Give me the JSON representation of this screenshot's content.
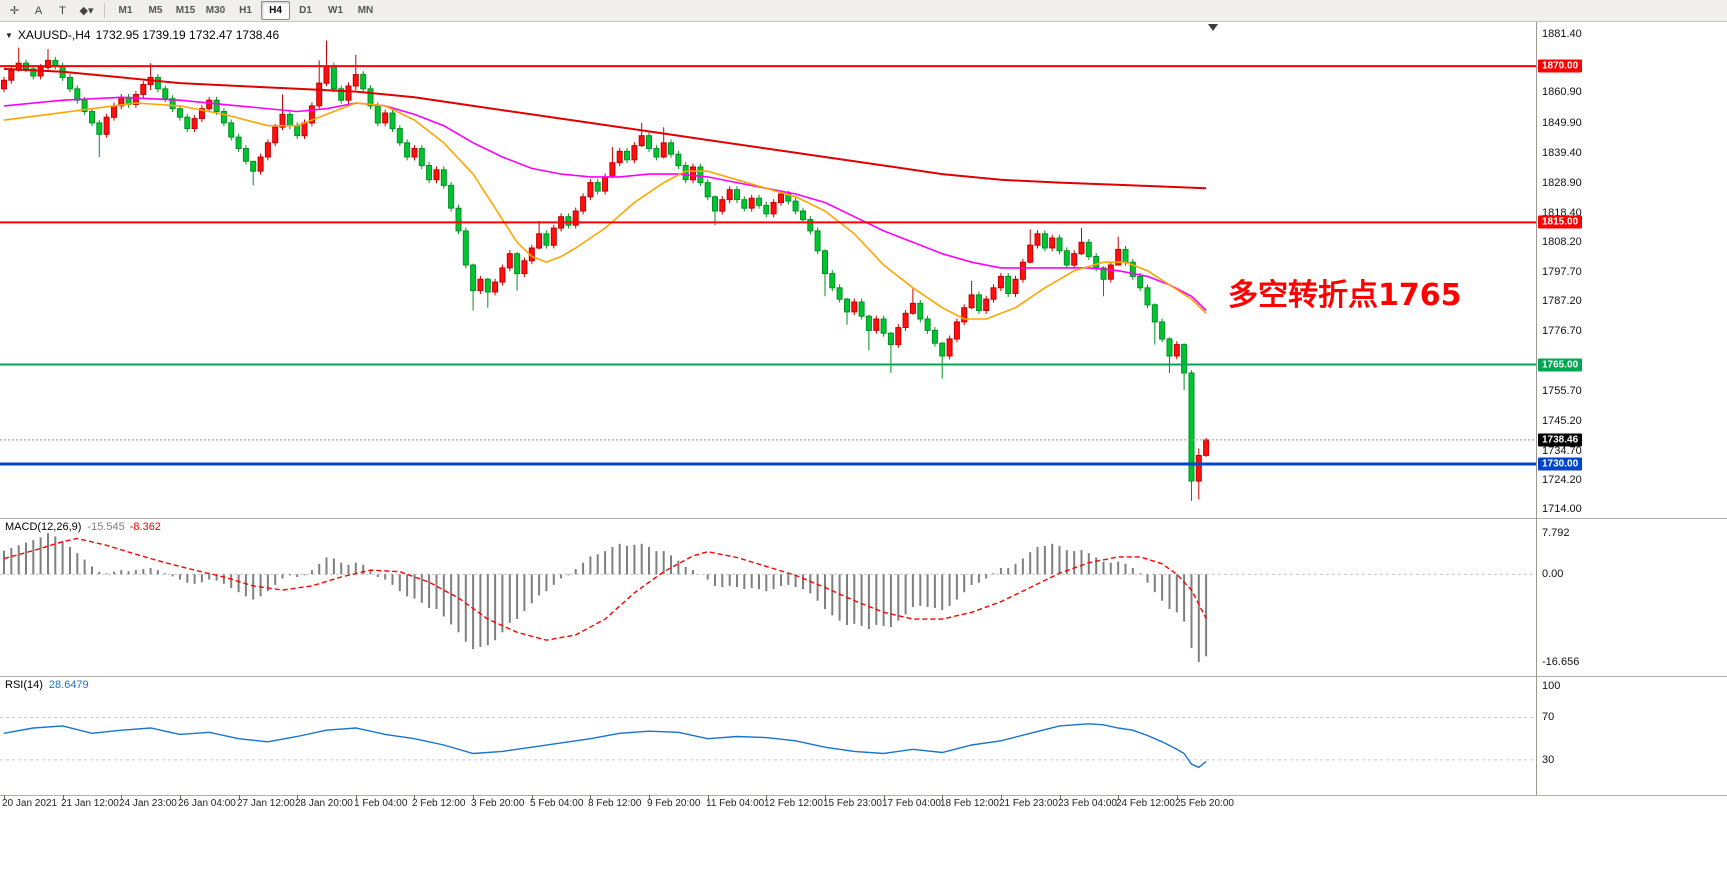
{
  "toolbar": {
    "tool_buttons": [
      {
        "name": "crosshair",
        "glyph": "✛"
      },
      {
        "name": "text-label",
        "glyph": "A"
      },
      {
        "name": "text-tool",
        "glyph": "T"
      },
      {
        "name": "shapes-dropdown",
        "glyph": "◆▾"
      }
    ],
    "timeframes": [
      "M1",
      "M5",
      "M15",
      "M30",
      "H1",
      "H4",
      "D1",
      "W1",
      "MN"
    ],
    "active_timeframe": "H4"
  },
  "chart": {
    "collapse_icon": "▼",
    "symbol_title": "XAUUSD-,H4",
    "ohlc_text": "1732.95 1739.19 1732.47 1738.46",
    "annotation": "多空转折点1765",
    "annotation_color": "#ff0000",
    "price_range": {
      "max": 1885.5,
      "min": 1711.0
    },
    "y_axis_labels": [
      "1881.40",
      "1860.90",
      "1849.90",
      "1839.40",
      "1828.90",
      "1818.40",
      "1808.20",
      "1797.70",
      "1787.20",
      "1776.70",
      "1755.70",
      "1745.20",
      "1734.70",
      "1724.20",
      "1714.00"
    ],
    "hlines": [
      {
        "price": 1870.0,
        "label": "1870.00",
        "color": "#ff0000",
        "width": 2
      },
      {
        "price": 1815.0,
        "label": "1815.00",
        "color": "#ff0000",
        "width": 2
      },
      {
        "price": 1765.0,
        "label": "1765.00",
        "color": "#00a651",
        "width": 2
      },
      {
        "price": 1730.0,
        "label": "1730.00",
        "color": "#0044cc",
        "width": 3
      }
    ],
    "bid": {
      "price": 1738.46,
      "label": "1738.46",
      "badge_color": "#000000"
    }
  },
  "chart_data": {
    "type": "candlestick",
    "symbol": "XAUUSD-",
    "timeframe": "H4",
    "last_candle_ohlc": {
      "open": 1732.95,
      "high": 1739.19,
      "low": 1732.47,
      "close": 1738.46
    },
    "colors": {
      "bull": "#ff0f0f",
      "bull_stroke": "#c40000",
      "bear": "#00c431",
      "bear_stroke": "#009223",
      "ma_fast": "#ffa500",
      "ma_mid": "#ff00ff",
      "ma_slow": "#e00000",
      "macd_hist": "#7f7f7f",
      "macd_signal": "#ff0000",
      "rsi": "#1874cd"
    },
    "first_open": 1862.0,
    "closes": [
      1865.0,
      1868.5,
      1871.0,
      1869.0,
      1866.5,
      1869.5,
      1872.0,
      1870.0,
      1866.0,
      1862.0,
      1858.0,
      1854.0,
      1850.0,
      1846.0,
      1852.0,
      1856.0,
      1859.0,
      1856.5,
      1860.0,
      1863.5,
      1866.0,
      1862.0,
      1858.5,
      1855.0,
      1852.0,
      1848.0,
      1851.5,
      1855.0,
      1858.0,
      1854.0,
      1850.0,
      1845.0,
      1841.0,
      1836.5,
      1833.0,
      1838.0,
      1843.0,
      1848.5,
      1853.0,
      1849.0,
      1845.5,
      1850.0,
      1856.0,
      1864.0,
      1870.0,
      1862.0,
      1858.0,
      1863.0,
      1867.0,
      1862.0,
      1856.0,
      1850.0,
      1853.5,
      1848.0,
      1843.0,
      1838.0,
      1841.0,
      1835.0,
      1830.0,
      1833.5,
      1828.0,
      1820.0,
      1812.0,
      1800.0,
      1791.0,
      1795.0,
      1790.5,
      1794.0,
      1799.0,
      1804.0,
      1797.0,
      1801.5,
      1806.0,
      1811.0,
      1807.0,
      1813.0,
      1817.0,
      1814.0,
      1819.0,
      1824.0,
      1829.0,
      1826.0,
      1831.0,
      1836.0,
      1840.0,
      1837.0,
      1842.0,
      1845.5,
      1841.0,
      1838.0,
      1843.0,
      1839.0,
      1835.0,
      1830.0,
      1834.5,
      1829.0,
      1824.0,
      1819.0,
      1823.0,
      1826.5,
      1823.0,
      1820.0,
      1823.5,
      1821.0,
      1818.0,
      1822.0,
      1825.0,
      1822.5,
      1819.0,
      1816.0,
      1812.0,
      1805.0,
      1797.0,
      1792.0,
      1788.0,
      1783.5,
      1787.0,
      1782.0,
      1777.0,
      1781.0,
      1776.0,
      1772.0,
      1778.0,
      1783.0,
      1786.5,
      1781.0,
      1777.0,
      1772.5,
      1768.0,
      1774.0,
      1780.0,
      1785.0,
      1789.5,
      1784.0,
      1788.0,
      1792.0,
      1796.0,
      1790.0,
      1795.0,
      1801.0,
      1807.0,
      1811.0,
      1806.0,
      1809.5,
      1805.0,
      1800.0,
      1804.0,
      1808.0,
      1803.0,
      1799.0,
      1795.0,
      1800.0,
      1805.5,
      1801.0,
      1796.0,
      1792.0,
      1786.0,
      1780.0,
      1774.0,
      1768.0,
      1772.0,
      1762.0,
      1724.0,
      1733.0,
      1738.46
    ],
    "wick_overrides": {
      "2": [
        1876.5,
        1868.0
      ],
      "6": [
        1876.0,
        1868.5
      ],
      "13": [
        1851.0,
        1838.0
      ],
      "20": [
        1871.0,
        1861.5
      ],
      "34": [
        1836.5,
        1828.0
      ],
      "38": [
        1860.0,
        1847.5
      ],
      "43": [
        1872.0,
        1855.0
      ],
      "44": [
        1879.0,
        1863.0
      ],
      "48": [
        1874.0,
        1861.5
      ],
      "64": [
        1800.5,
        1784.0
      ],
      "66": [
        1795.5,
        1785.0
      ],
      "70": [
        1804.5,
        1791.0
      ],
      "73": [
        1815.5,
        1805.5
      ],
      "83": [
        1841.5,
        1830.5
      ],
      "87": [
        1850.0,
        1841.5
      ],
      "90": [
        1848.5,
        1837.5
      ],
      "97": [
        1824.5,
        1814.0
      ],
      "112": [
        1805.5,
        1789.0
      ],
      "115": [
        1788.5,
        1779.0
      ],
      "118": [
        1782.5,
        1770.0
      ],
      "121": [
        1776.5,
        1762.0
      ],
      "124": [
        1792.0,
        1782.5
      ],
      "128": [
        1773.0,
        1760.0
      ],
      "132": [
        1794.5,
        1784.5
      ],
      "140": [
        1812.5,
        1800.5
      ],
      "147": [
        1813.0,
        1803.5
      ],
      "150": [
        1799.5,
        1789.0
      ],
      "152": [
        1810.0,
        1800.5
      ],
      "157": [
        1786.5,
        1772.0
      ],
      "159": [
        1774.5,
        1762.0
      ],
      "161": [
        1772.5,
        1756.0
      ],
      "162": [
        1763.0,
        1717.0
      ],
      "163": [
        1735.5,
        1717.5
      ],
      "164": [
        1739.19,
        1732.47
      ]
    },
    "ma_mid": [
      [
        0,
        1856
      ],
      [
        8,
        1858
      ],
      [
        16,
        1859
      ],
      [
        24,
        1858
      ],
      [
        32,
        1856
      ],
      [
        40,
        1854
      ],
      [
        44,
        1855
      ],
      [
        48,
        1857
      ],
      [
        52,
        1856
      ],
      [
        56,
        1853
      ],
      [
        60,
        1849
      ],
      [
        64,
        1843
      ],
      [
        68,
        1838
      ],
      [
        72,
        1834
      ],
      [
        76,
        1832
      ],
      [
        80,
        1831
      ],
      [
        84,
        1831
      ],
      [
        88,
        1832
      ],
      [
        92,
        1832
      ],
      [
        96,
        1831
      ],
      [
        100,
        1829
      ],
      [
        104,
        1827
      ],
      [
        108,
        1825
      ],
      [
        112,
        1822
      ],
      [
        116,
        1817
      ],
      [
        120,
        1812
      ],
      [
        124,
        1808
      ],
      [
        128,
        1804
      ],
      [
        132,
        1801
      ],
      [
        136,
        1799
      ],
      [
        140,
        1799
      ],
      [
        144,
        1799
      ],
      [
        148,
        1799
      ],
      [
        152,
        1798
      ],
      [
        156,
        1796
      ],
      [
        159,
        1793
      ],
      [
        162,
        1789
      ],
      [
        164,
        1784
      ]
    ],
    "ma_fast": [
      [
        0,
        1851
      ],
      [
        6,
        1853
      ],
      [
        12,
        1855
      ],
      [
        18,
        1857
      ],
      [
        24,
        1856
      ],
      [
        30,
        1853
      ],
      [
        36,
        1849
      ],
      [
        40,
        1849
      ],
      [
        44,
        1853
      ],
      [
        48,
        1857
      ],
      [
        52,
        1856
      ],
      [
        56,
        1851
      ],
      [
        60,
        1843
      ],
      [
        64,
        1832
      ],
      [
        66,
        1824
      ],
      [
        68,
        1816
      ],
      [
        70,
        1808
      ],
      [
        72,
        1803
      ],
      [
        74,
        1801
      ],
      [
        76,
        1803
      ],
      [
        78,
        1806
      ],
      [
        82,
        1813
      ],
      [
        86,
        1822
      ],
      [
        90,
        1829
      ],
      [
        93,
        1833
      ],
      [
        96,
        1833
      ],
      [
        100,
        1830
      ],
      [
        104,
        1827
      ],
      [
        108,
        1824
      ],
      [
        112,
        1819
      ],
      [
        116,
        1811
      ],
      [
        120,
        1800
      ],
      [
        124,
        1792
      ],
      [
        128,
        1785
      ],
      [
        131,
        1781
      ],
      [
        134,
        1781
      ],
      [
        138,
        1785
      ],
      [
        142,
        1792
      ],
      [
        146,
        1798
      ],
      [
        150,
        1801
      ],
      [
        153,
        1801
      ],
      [
        156,
        1798
      ],
      [
        159,
        1793
      ],
      [
        162,
        1788
      ],
      [
        164,
        1783
      ]
    ],
    "ma_slow": [
      [
        0,
        1869
      ],
      [
        8,
        1868
      ],
      [
        16,
        1866
      ],
      [
        24,
        1864
      ],
      [
        32,
        1863
      ],
      [
        40,
        1862
      ],
      [
        48,
        1861
      ],
      [
        56,
        1859
      ],
      [
        64,
        1856
      ],
      [
        72,
        1853
      ],
      [
        80,
        1850
      ],
      [
        88,
        1847
      ],
      [
        96,
        1844
      ],
      [
        104,
        1841
      ],
      [
        112,
        1838
      ],
      [
        120,
        1835
      ],
      [
        128,
        1832
      ],
      [
        136,
        1830
      ],
      [
        144,
        1829
      ],
      [
        154,
        1828
      ],
      [
        164,
        1827
      ]
    ],
    "macd": {
      "name": "MACD(12,26,9)",
      "value_main": "-15.545",
      "value_signal": "-8.362",
      "axis": [
        "7.792",
        "0.00",
        "-16.656"
      ],
      "range": {
        "max": 10.5,
        "min": -19.3
      },
      "hist": [
        4.5,
        5.0,
        5.5,
        6.0,
        6.5,
        7.0,
        7.792,
        7.2,
        6.3,
        5.2,
        4.0,
        2.8,
        1.5,
        0.5,
        0.2,
        0.5,
        0.8,
        0.6,
        0.8,
        1.0,
        1.2,
        0.8,
        0.2,
        -0.4,
        -1.0,
        -1.6,
        -1.8,
        -1.5,
        -1.0,
        -1.2,
        -1.8,
        -2.6,
        -3.4,
        -4.2,
        -4.8,
        -4.2,
        -3.2,
        -2.0,
        -0.8,
        -0.2,
        -0.5,
        -0.2,
        0.8,
        2.0,
        3.2,
        3.0,
        2.2,
        1.8,
        2.2,
        1.8,
        0.8,
        -0.5,
        -1.0,
        -2.0,
        -3.2,
        -4.2,
        -4.6,
        -5.4,
        -6.4,
        -6.6,
        -8.0,
        -9.5,
        -11.0,
        -12.8,
        -14.2,
        -13.8,
        -13.5,
        -12.5,
        -11.0,
        -9.2,
        -8.5,
        -7.0,
        -5.5,
        -4.0,
        -3.2,
        -2.0,
        -0.8,
        -0.2,
        1.0,
        2.2,
        3.4,
        3.8,
        4.4,
        5.2,
        5.8,
        5.4,
        5.6,
        5.8,
        5.2,
        4.4,
        4.4,
        3.6,
        2.6,
        1.4,
        0.8,
        0.0,
        -1.0,
        -2.2,
        -2.4,
        -2.2,
        -2.4,
        -2.8,
        -2.6,
        -2.8,
        -3.2,
        -2.8,
        -2.2,
        -2.0,
        -2.4,
        -2.8,
        -3.6,
        -5.0,
        -6.6,
        -7.8,
        -8.8,
        -9.6,
        -9.4,
        -9.8,
        -10.4,
        -9.6,
        -9.8,
        -10.0,
        -8.8,
        -7.6,
        -6.2,
        -6.0,
        -6.2,
        -6.4,
        -6.8,
        -6.0,
        -4.8,
        -3.4,
        -2.0,
        -1.6,
        -0.8,
        0.2,
        1.2,
        1.2,
        2.0,
        3.0,
        4.2,
        5.2,
        5.4,
        5.8,
        5.4,
        4.6,
        4.4,
        4.6,
        4.0,
        3.2,
        2.4,
        2.2,
        2.4,
        2.0,
        1.2,
        0.2,
        -1.6,
        -3.4,
        -5.0,
        -6.6,
        -7.2,
        -9.0,
        -14.0,
        -16.656,
        -15.545
      ],
      "signal": [
        [
          0,
          3.0
        ],
        [
          4,
          4.5
        ],
        [
          8,
          6.2
        ],
        [
          10,
          6.8
        ],
        [
          14,
          5.5
        ],
        [
          18,
          3.8
        ],
        [
          22,
          2.2
        ],
        [
          26,
          0.8
        ],
        [
          30,
          -0.5
        ],
        [
          34,
          -2.2
        ],
        [
          38,
          -3.0
        ],
        [
          42,
          -2.2
        ],
        [
          46,
          -0.5
        ],
        [
          50,
          0.8
        ],
        [
          54,
          0.5
        ],
        [
          58,
          -1.5
        ],
        [
          62,
          -4.5
        ],
        [
          66,
          -8.5
        ],
        [
          70,
          -11.0
        ],
        [
          74,
          -12.5
        ],
        [
          78,
          -11.5
        ],
        [
          82,
          -8.5
        ],
        [
          86,
          -3.5
        ],
        [
          90,
          0.5
        ],
        [
          94,
          3.5
        ],
        [
          96,
          4.3
        ],
        [
          100,
          3.2
        ],
        [
          104,
          1.5
        ],
        [
          108,
          -0.2
        ],
        [
          112,
          -2.5
        ],
        [
          116,
          -5.0
        ],
        [
          120,
          -7.2
        ],
        [
          124,
          -8.5
        ],
        [
          128,
          -8.5
        ],
        [
          132,
          -7.2
        ],
        [
          136,
          -5.2
        ],
        [
          140,
          -2.5
        ],
        [
          144,
          0.2
        ],
        [
          148,
          2.2
        ],
        [
          152,
          3.3
        ],
        [
          155,
          3.3
        ],
        [
          158,
          2.0
        ],
        [
          160,
          0.0
        ],
        [
          162,
          -3.0
        ],
        [
          164,
          -8.362
        ]
      ]
    },
    "rsi": {
      "name": "RSI(14)",
      "value": "28.6479",
      "axis": [
        "100",
        "70",
        "30"
      ],
      "levels": [
        70,
        30
      ],
      "range": {
        "max": 108,
        "min": -3
      },
      "points": [
        [
          0,
          55
        ],
        [
          4,
          60
        ],
        [
          8,
          62
        ],
        [
          12,
          55
        ],
        [
          16,
          58
        ],
        [
          20,
          60
        ],
        [
          24,
          54
        ],
        [
          28,
          56
        ],
        [
          32,
          50
        ],
        [
          36,
          47
        ],
        [
          40,
          52
        ],
        [
          44,
          58
        ],
        [
          48,
          60
        ],
        [
          52,
          54
        ],
        [
          56,
          50
        ],
        [
          60,
          44
        ],
        [
          64,
          36
        ],
        [
          68,
          38
        ],
        [
          72,
          42
        ],
        [
          76,
          46
        ],
        [
          80,
          50
        ],
        [
          84,
          55
        ],
        [
          88,
          57
        ],
        [
          92,
          56
        ],
        [
          96,
          50
        ],
        [
          100,
          52
        ],
        [
          104,
          51
        ],
        [
          108,
          48
        ],
        [
          112,
          42
        ],
        [
          116,
          38
        ],
        [
          120,
          36
        ],
        [
          124,
          40
        ],
        [
          128,
          37
        ],
        [
          132,
          44
        ],
        [
          136,
          48
        ],
        [
          140,
          55
        ],
        [
          144,
          62
        ],
        [
          148,
          64
        ],
        [
          150,
          63
        ],
        [
          152,
          60
        ],
        [
          154,
          58
        ],
        [
          156,
          53
        ],
        [
          158,
          47
        ],
        [
          160,
          40
        ],
        [
          161,
          36
        ],
        [
          162,
          26
        ],
        [
          163,
          23
        ],
        [
          164,
          28.6
        ]
      ]
    },
    "time_labels": [
      "20 Jan 2021",
      "21 Jan 12:00",
      "24 Jan 23:00",
      "26 Jan 04:00",
      "27 Jan 12:00",
      "28 Jan 20:00",
      "1 Feb 04:00",
      "2 Feb 12:00",
      "3 Feb 20:00",
      "5 Feb 04:00",
      "8 Feb 12:00",
      "9 Feb 20:00",
      "11 Feb 04:00",
      "12 Feb 12:00",
      "15 Feb 23:00",
      "17 Feb 04:00",
      "18 Feb 12:00",
      "21 Feb 23:00",
      "23 Feb 04:00",
      "24 Feb 12:00",
      "25 Feb 20:00"
    ]
  }
}
